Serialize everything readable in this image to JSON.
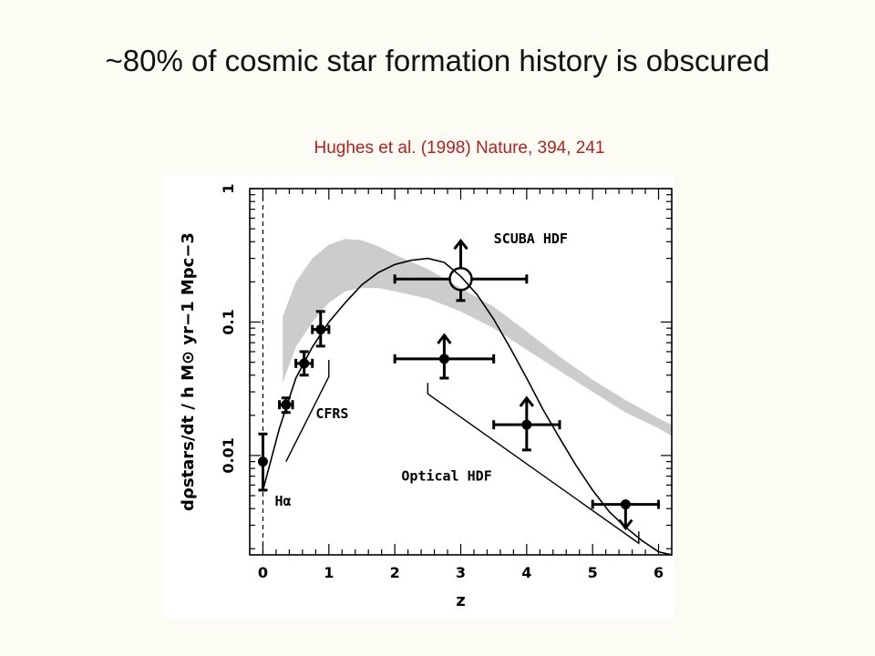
{
  "slide": {
    "title": "~80% of cosmic star formation history is obscured",
    "citation": "Hughes et al. (1998) Nature, 394, 241",
    "citation_color": "#b22222"
  },
  "chart_data": {
    "type": "scatter",
    "xlabel": "z",
    "ylabel": "dρstars/dt / h M⊙ yr−1 Mpc−3",
    "xlim": [
      -0.2,
      6.2
    ],
    "ylim": [
      0.0018,
      1
    ],
    "yscale": "log",
    "x_ticks": [
      "0",
      "1",
      "2",
      "3",
      "4",
      "5",
      "6"
    ],
    "y_ticks": [
      "0.01",
      "0.1",
      "1"
    ],
    "grid": false,
    "points": [
      {
        "x": 0.0,
        "y": 0.009,
        "xerr": 0.0,
        "ylo": 0.0055,
        "yhi": 0.0145,
        "limit": "none"
      },
      {
        "x": 0.35,
        "y": 0.024,
        "xerr": 0.1,
        "ylo": 0.021,
        "yhi": 0.027,
        "limit": "none"
      },
      {
        "x": 0.625,
        "y": 0.049,
        "xerr": 0.125,
        "ylo": 0.04,
        "yhi": 0.06,
        "limit": "none"
      },
      {
        "x": 0.875,
        "y": 0.088,
        "xerr": 0.125,
        "ylo": 0.066,
        "yhi": 0.12,
        "limit": "none"
      },
      {
        "x": 2.75,
        "y": 0.053,
        "xerr": 0.75,
        "ylo": 0.038,
        "yhi": 0.068,
        "limit": "lower"
      },
      {
        "x": 4.0,
        "y": 0.017,
        "xerr": 0.5,
        "ylo": 0.011,
        "yhi": 0.023,
        "limit": "lower"
      },
      {
        "x": 5.5,
        "y": 0.0043,
        "xerr": 0.5,
        "ylo": 0.0043,
        "yhi": 0.0043,
        "limit": "upper"
      }
    ],
    "scuba_point": {
      "x": 3.0,
      "y": 0.21,
      "xlo": 2.0,
      "xhi": 4.0,
      "ylo": 0.145,
      "limit": "lower"
    },
    "model_curve": {
      "x": [
        0.0,
        0.25,
        0.5,
        0.75,
        1.0,
        1.25,
        1.5,
        1.75,
        2.0,
        2.25,
        2.5,
        2.75,
        3.0,
        3.25,
        3.5,
        3.75,
        4.0,
        4.25,
        4.5,
        4.75,
        5.0,
        5.25,
        5.5,
        5.75,
        6.0,
        6.2
      ],
      "y": [
        0.0055,
        0.016,
        0.038,
        0.065,
        0.1,
        0.14,
        0.19,
        0.235,
        0.27,
        0.29,
        0.3,
        0.28,
        0.22,
        0.16,
        0.105,
        0.064,
        0.038,
        0.022,
        0.0135,
        0.0084,
        0.0055,
        0.0038,
        0.0029,
        0.0023,
        0.0019,
        0.0018
      ]
    },
    "shaded_band": {
      "x": [
        0.3,
        0.5,
        0.75,
        1.0,
        1.25,
        1.5,
        1.75,
        2.0,
        2.5,
        3.0,
        3.5,
        4.0,
        4.5,
        5.0,
        5.5,
        6.0,
        6.2
      ],
      "upper": [
        0.11,
        0.2,
        0.3,
        0.38,
        0.42,
        0.41,
        0.37,
        0.32,
        0.25,
        0.18,
        0.13,
        0.085,
        0.055,
        0.037,
        0.026,
        0.019,
        0.017
      ],
      "lower": [
        0.035,
        0.065,
        0.1,
        0.14,
        0.17,
        0.18,
        0.18,
        0.17,
        0.15,
        0.12,
        0.09,
        0.062,
        0.043,
        0.03,
        0.021,
        0.016,
        0.014
      ]
    },
    "cfrs_bracket": {
      "x": [
        0.35,
        1.0,
        1.0
      ],
      "y": [
        0.009,
        0.039,
        0.052
      ]
    },
    "optical_bracket": {
      "x": [
        2.5,
        2.5,
        5.7,
        5.7
      ],
      "y": [
        0.035,
        0.029,
        0.0022,
        0.0027
      ]
    },
    "annotations": [
      {
        "text": "SCUBA HDF",
        "x": 3.5,
        "y": 0.39
      },
      {
        "text": "CFRS",
        "x": 0.8,
        "y": 0.019
      },
      {
        "text": "Optical HDF",
        "x": 2.1,
        "y": 0.0065
      },
      {
        "text": "Hα",
        "x": 0.18,
        "y": 0.0042
      }
    ]
  }
}
